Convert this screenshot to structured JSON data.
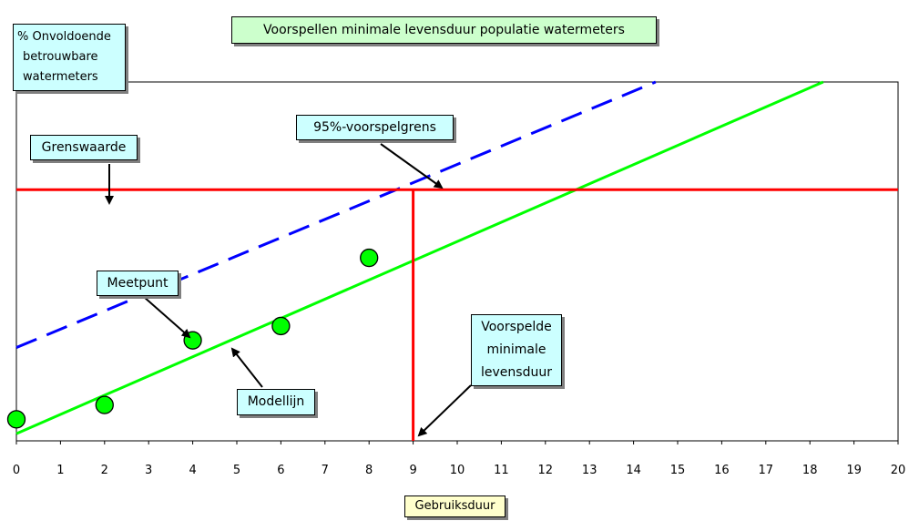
{
  "chart_data": {
    "type": "line",
    "title": "Voorspellen minimale levensduur populatie watermeters",
    "ylabel": [
      "% Onvoldoende",
      "betrouwbare",
      "watermeters"
    ],
    "xlabel": "Gebruiksduur",
    "xlim": [
      0,
      20
    ],
    "ylim": [
      0,
      100
    ],
    "x_ticks": [
      "0",
      "1",
      "2",
      "3",
      "4",
      "5",
      "6",
      "7",
      "8",
      "9",
      "10",
      "11",
      "12",
      "13",
      "14",
      "15",
      "16",
      "17",
      "18",
      "19",
      "20"
    ],
    "grid": false,
    "series": [
      {
        "name": "Modellijn",
        "style": "solid",
        "color": "#00ff00",
        "x": [
          0,
          18.3
        ],
        "y": [
          2,
          100
        ]
      },
      {
        "name": "95%-voorspelgrens",
        "style": "dashed",
        "color": "#0000ff",
        "x": [
          0,
          14.5
        ],
        "y": [
          26,
          100
        ]
      },
      {
        "name": "Grenswaarde",
        "style": "solid",
        "color": "#ff0000",
        "x": [
          0,
          20
        ],
        "y": [
          70,
          70
        ]
      },
      {
        "name": "Voorspelde minimale levensduur",
        "style": "solid",
        "color": "#ff0000",
        "x": [
          9,
          9
        ],
        "y": [
          0,
          70
        ]
      }
    ],
    "points": {
      "name": "Meetpunt",
      "color": "#00ff00",
      "x": [
        0,
        2,
        4,
        6,
        8
      ],
      "y": [
        6,
        10,
        28,
        32,
        51
      ]
    },
    "annotations": {
      "grenswaarde": "Grenswaarde",
      "voorspelgrens": "95%-voorspelgrens",
      "meetpunt": "Meetpunt",
      "modellijn": "Modellijn",
      "voorspelde": [
        "Voorspelde",
        "minimale",
        "levensduur"
      ]
    }
  }
}
